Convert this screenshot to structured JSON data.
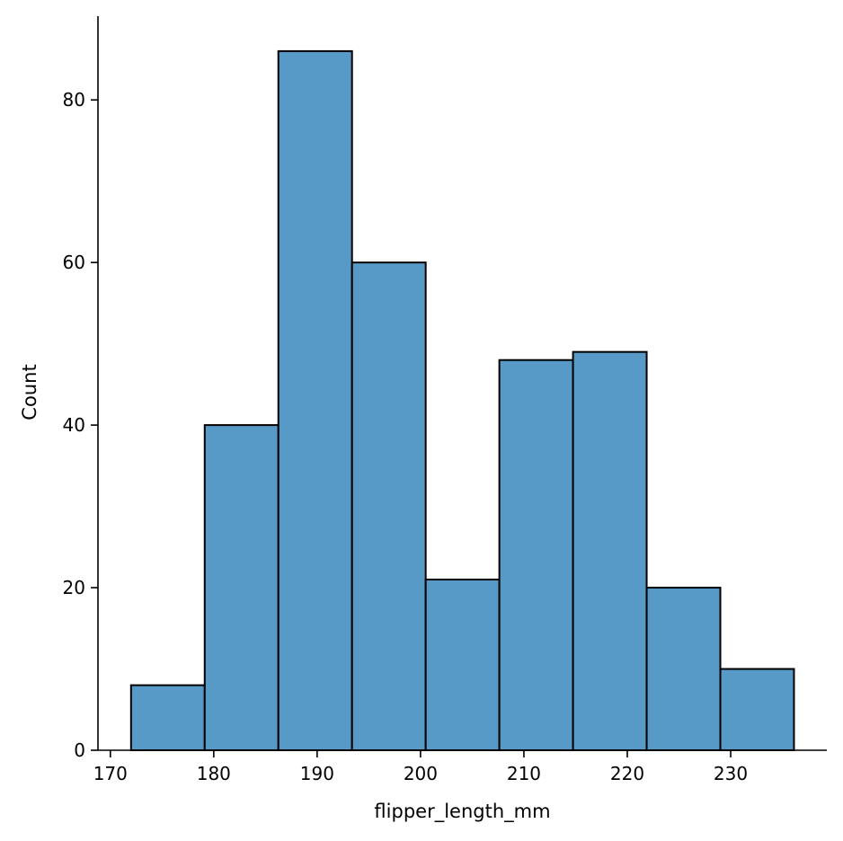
{
  "chart_data": {
    "type": "bar",
    "subtype": "histogram",
    "title": "",
    "xlabel": "flipper_length_mm",
    "ylabel": "Count",
    "bin_edges": [
      172,
      179.125,
      186.25,
      193.375,
      200.5,
      207.625,
      214.75,
      221.875,
      229,
      236.125
    ],
    "values": [
      8,
      40,
      86,
      60,
      21,
      48,
      49,
      20,
      10
    ],
    "xlim": [
      168.8,
      239.3
    ],
    "ylim": [
      0,
      90.3
    ],
    "xticks": [
      170,
      180,
      190,
      200,
      210,
      220,
      230
    ],
    "yticks": [
      0,
      20,
      40,
      60,
      80
    ],
    "grid": false,
    "legend": "none",
    "colors": {
      "bar_fill": "#5799c7",
      "bar_edge": "#000000",
      "axis": "#000000"
    }
  }
}
